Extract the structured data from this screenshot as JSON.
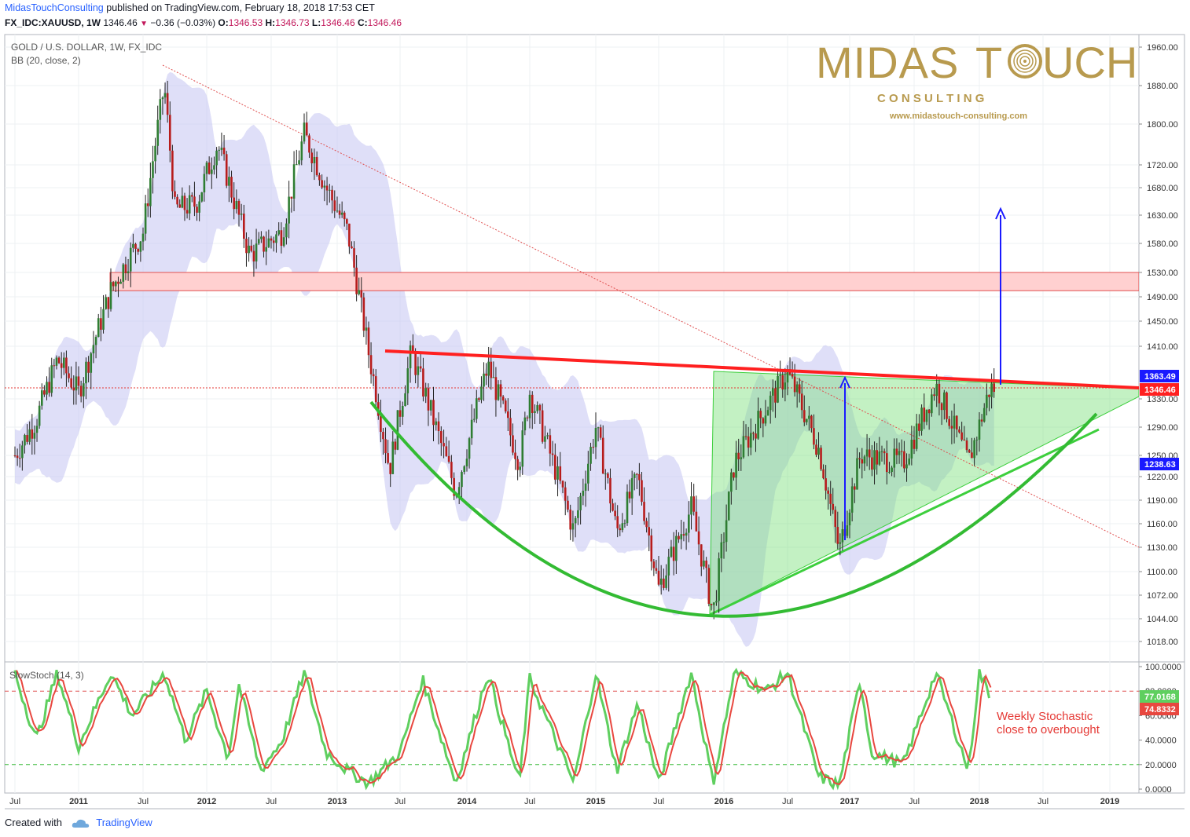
{
  "header": {
    "author": "MidasTouchConsulting",
    "published": "published on TradingView.com, February 18, 2018 17:53 CET",
    "symbol": "FX_IDC:XAUUSD, 1W",
    "last": "1346.46",
    "change": "−0.36 (−0.03%)",
    "o_label": "O:",
    "o": "1346.53",
    "h_label": "H:",
    "h": "1346.73",
    "l_label": "L:",
    "l": "1346.46",
    "c_label": "C:",
    "c": "1346.46"
  },
  "legend": {
    "title": "GOLD / U.S. DOLLAR, 1W, FX_IDC",
    "indicator": "BB (20, close, 2)",
    "stoch": "SlowStoch (14, 3)"
  },
  "logo": {
    "word1": "MIDAS",
    "word2": "T",
    "word3": "UCH",
    "sub": "C O N S U L T I N G",
    "url": "www.midastouch-consulting.com"
  },
  "annotation": {
    "line1": "Weekly Stochastic",
    "line2": "close to overbought"
  },
  "footer": {
    "created": "Created with",
    "brand": "TradingView"
  },
  "colors": {
    "up": "#2e7d32",
    "down": "#b71c1c",
    "resistance": "#ff2020",
    "bowl": "#3dbb3d",
    "triangle": "#7be07b",
    "bollinger": "#c5c5f2",
    "zone": "#ffd0d0",
    "target_arrow": "#1a1aff",
    "stoch_k": "#5fcf5f",
    "stoch_d": "#e8473f",
    "gold": "#b89a4e"
  },
  "chart_data": [
    {
      "type": "candlestick",
      "title": "GOLD / U.S. DOLLAR, 1W, FX_IDC",
      "price_axis_ticks": [
        "1960.00",
        "1880.00",
        "1800.00",
        "1720.00",
        "1680.00",
        "1630.00",
        "1580.00",
        "1530.00",
        "1490.00",
        "1450.00",
        "1410.00",
        "1330.00",
        "1290.00",
        "1250.00",
        "1220.00",
        "1190.00",
        "1160.00",
        "1130.00",
        "1100.00",
        "1072.00",
        "1044.00",
        "1018.00"
      ],
      "time_axis_ticks": [
        "Jul",
        "2011",
        "Jul",
        "2012",
        "Jul",
        "2013",
        "Jul",
        "2014",
        "Jul",
        "2015",
        "Jul",
        "2016",
        "Jul",
        "2017",
        "Jul",
        "2018",
        "Jul",
        "2019"
      ],
      "price_labels": [
        {
          "value": "1363.49",
          "color": "#1a1aff"
        },
        {
          "value": "1346.46",
          "color": "#ff2020"
        },
        {
          "value": "1238.63",
          "color": "#1a1aff"
        }
      ],
      "last_price": 1346.46,
      "path_points": [
        [
          "2010-07",
          1250
        ],
        [
          "2010-09",
          1300
        ],
        [
          "2010-11",
          1390
        ],
        [
          "2011-01",
          1340
        ],
        [
          "2011-04",
          1500
        ],
        [
          "2011-07",
          1600
        ],
        [
          "2011-09",
          1880
        ],
        [
          "2011-10",
          1640
        ],
        [
          "2011-12",
          1650
        ],
        [
          "2012-02",
          1760
        ],
        [
          "2012-05",
          1560
        ],
        [
          "2012-08",
          1600
        ],
        [
          "2012-10",
          1780
        ],
        [
          "2012-12",
          1680
        ],
        [
          "2013-02",
          1600
        ],
        [
          "2013-04",
          1400
        ],
        [
          "2013-06",
          1230
        ],
        [
          "2013-08",
          1400
        ],
        [
          "2013-12",
          1200
        ],
        [
          "2014-03",
          1380
        ],
        [
          "2014-06",
          1240
        ],
        [
          "2014-07",
          1340
        ],
        [
          "2014-11",
          1150
        ],
        [
          "2015-01",
          1290
        ],
        [
          "2015-03",
          1150
        ],
        [
          "2015-05",
          1220
        ],
        [
          "2015-07",
          1080
        ],
        [
          "2015-10",
          1180
        ],
        [
          "2015-12",
          1050
        ],
        [
          "2016-02",
          1240
        ],
        [
          "2016-07",
          1370
        ],
        [
          "2016-10",
          1260
        ],
        [
          "2016-12",
          1125
        ],
        [
          "2017-02",
          1250
        ],
        [
          "2017-06",
          1240
        ],
        [
          "2017-09",
          1350
        ],
        [
          "2017-12",
          1240
        ],
        [
          "2018-02",
          1346
        ]
      ],
      "resistance_zone": [
        1500,
        1530
      ],
      "dotted_price_line": 1346.46,
      "target": 1645
    },
    {
      "type": "line",
      "title": "SlowStoch (14, 3)",
      "y_axis_ticks": [
        "100.0000",
        "80.0000",
        "60.0000",
        "40.0000",
        "20.0000",
        "0.0000"
      ],
      "ylim": [
        0,
        100
      ],
      "levels": [
        80,
        20
      ],
      "series": [
        {
          "value": "77.0168",
          "color": "#5fcf5f"
        },
        {
          "value": "74.8332",
          "color": "#e8473f"
        }
      ],
      "k_points": [
        [
          "2010-07",
          95
        ],
        [
          "2010-09",
          40
        ],
        [
          "2010-11",
          95
        ],
        [
          "2011-01",
          35
        ],
        [
          "2011-04",
          95
        ],
        [
          "2011-06",
          60
        ],
        [
          "2011-09",
          95
        ],
        [
          "2011-11",
          40
        ],
        [
          "2012-01",
          80
        ],
        [
          "2012-03",
          25
        ],
        [
          "2012-04",
          85
        ],
        [
          "2012-06",
          15
        ],
        [
          "2012-08",
          40
        ],
        [
          "2012-10",
          95
        ],
        [
          "2012-12",
          30
        ],
        [
          "2013-02",
          15
        ],
        [
          "2013-04",
          5
        ],
        [
          "2013-07",
          30
        ],
        [
          "2013-09",
          90
        ],
        [
          "2013-12",
          5
        ],
        [
          "2014-03",
          95
        ],
        [
          "2014-06",
          5
        ],
        [
          "2014-07",
          90
        ],
        [
          "2014-11",
          5
        ],
        [
          "2015-01",
          95
        ],
        [
          "2015-03",
          15
        ],
        [
          "2015-05",
          70
        ],
        [
          "2015-07",
          5
        ],
        [
          "2015-10",
          95
        ],
        [
          "2015-12",
          5
        ],
        [
          "2016-02",
          95
        ],
        [
          "2016-05",
          80
        ],
        [
          "2016-07",
          95
        ],
        [
          "2016-10",
          10
        ],
        [
          "2016-12",
          3
        ],
        [
          "2017-02",
          90
        ],
        [
          "2017-03",
          30
        ],
        [
          "2017-06",
          20
        ],
        [
          "2017-09",
          95
        ],
        [
          "2017-12",
          15
        ],
        [
          "2018-01",
          95
        ],
        [
          "2018-02",
          77
        ]
      ]
    }
  ]
}
